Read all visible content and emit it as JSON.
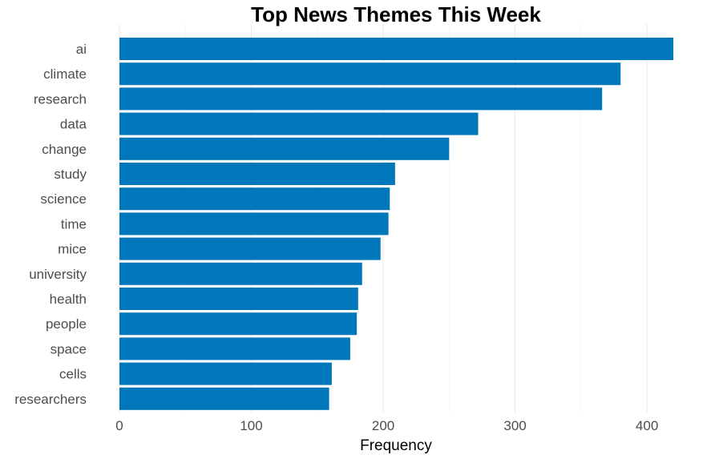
{
  "chart_data": {
    "type": "bar",
    "orientation": "horizontal",
    "title": "Top News Themes This Week",
    "xlabel": "Frequency",
    "ylabel": "",
    "categories": [
      "ai",
      "climate",
      "research",
      "data",
      "change",
      "study",
      "science",
      "time",
      "mice",
      "university",
      "health",
      "people",
      "space",
      "cells",
      "researchers"
    ],
    "values": [
      420,
      380,
      366,
      272,
      250,
      209,
      205,
      204,
      198,
      184,
      181,
      180,
      175,
      161,
      159
    ],
    "xlim": [
      0,
      420
    ],
    "x_ticks": [
      0,
      100,
      200,
      300,
      400
    ],
    "grid": "vertical-major",
    "bar_color": "#0077BB",
    "legend": "none"
  }
}
